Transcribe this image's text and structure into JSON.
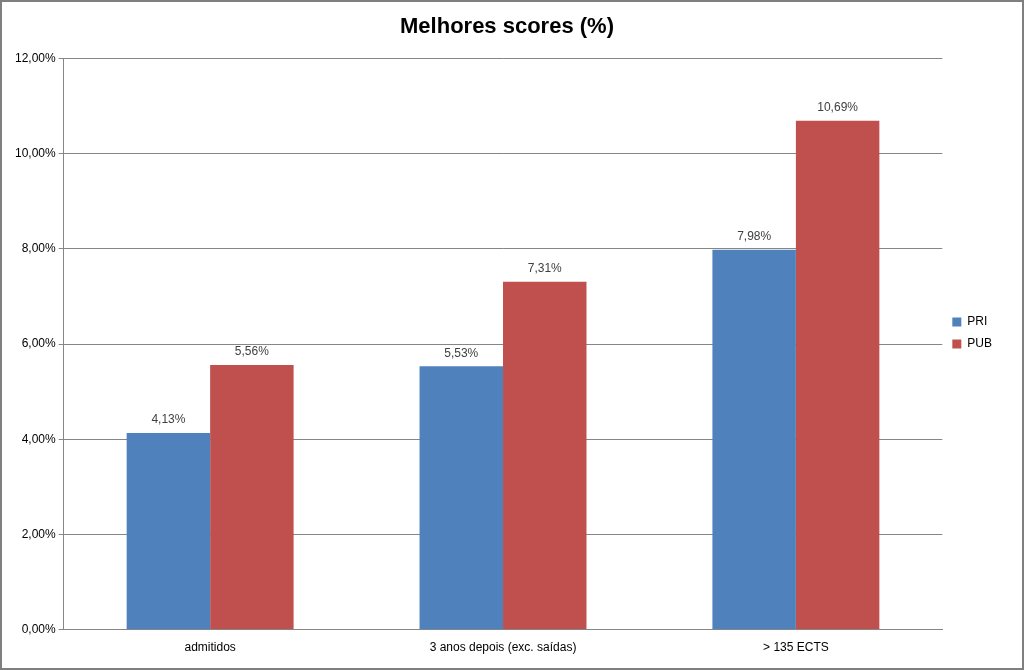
{
  "chart_data": {
    "type": "bar",
    "title": "Melhores scores (%)",
    "categories": [
      "admitidos",
      "3 anos depois (exc. saídas)",
      "> 135 ECTS"
    ],
    "series": [
      {
        "name": "PRI",
        "color": "#4f81bd",
        "values": [
          4.13,
          5.53,
          7.98
        ],
        "value_labels": [
          "4,13%",
          "5,53%",
          "7,98%"
        ]
      },
      {
        "name": "PUB",
        "color": "#c0504d",
        "values": [
          5.56,
          7.31,
          10.69
        ],
        "value_labels": [
          "5,56%",
          "7,31%",
          "10,69%"
        ]
      }
    ],
    "ylim": [
      0,
      12
    ],
    "yticks": [
      {
        "value": 0,
        "label": "0,00%"
      },
      {
        "value": 2,
        "label": "2,00%"
      },
      {
        "value": 4,
        "label": "4,00%"
      },
      {
        "value": 6,
        "label": "6,00%"
      },
      {
        "value": 8,
        "label": "8,00%"
      },
      {
        "value": 10,
        "label": "10,00%"
      },
      {
        "value": 12,
        "label": "12,00%"
      }
    ],
    "grid": true,
    "legend": "right",
    "data_labels": true
  }
}
